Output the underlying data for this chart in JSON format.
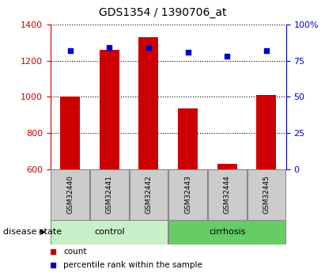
{
  "title": "GDS1354 / 1390706_at",
  "samples": [
    "GSM32440",
    "GSM32441",
    "GSM32442",
    "GSM32443",
    "GSM32444",
    "GSM32445"
  ],
  "counts": [
    1000,
    1260,
    1330,
    935,
    630,
    1010
  ],
  "percentiles": [
    82,
    84,
    84,
    81,
    78,
    82
  ],
  "ylim_left": [
    600,
    1400
  ],
  "ylim_right": [
    0,
    100
  ],
  "yticks_left": [
    600,
    800,
    1000,
    1200,
    1400
  ],
  "yticks_right": [
    0,
    25,
    50,
    75,
    100
  ],
  "ytick_labels_right": [
    "0",
    "25",
    "50",
    "75",
    "100%"
  ],
  "groups": [
    {
      "label": "control",
      "indices": [
        0,
        1,
        2
      ],
      "color": "#c8f0c8"
    },
    {
      "label": "cirrhosis",
      "indices": [
        3,
        4,
        5
      ],
      "color": "#66cc66"
    }
  ],
  "bar_color": "#cc0000",
  "dot_color": "#0000cc",
  "bar_width": 0.5,
  "grid_color": "#000000",
  "axis_left_color": "#cc0000",
  "axis_right_color": "#0000cc",
  "sample_box_color": "#cccccc",
  "disease_state_label": "disease state",
  "legend_count_label": "count",
  "legend_percentile_label": "percentile rank within the sample",
  "bg_color": "#ffffff"
}
